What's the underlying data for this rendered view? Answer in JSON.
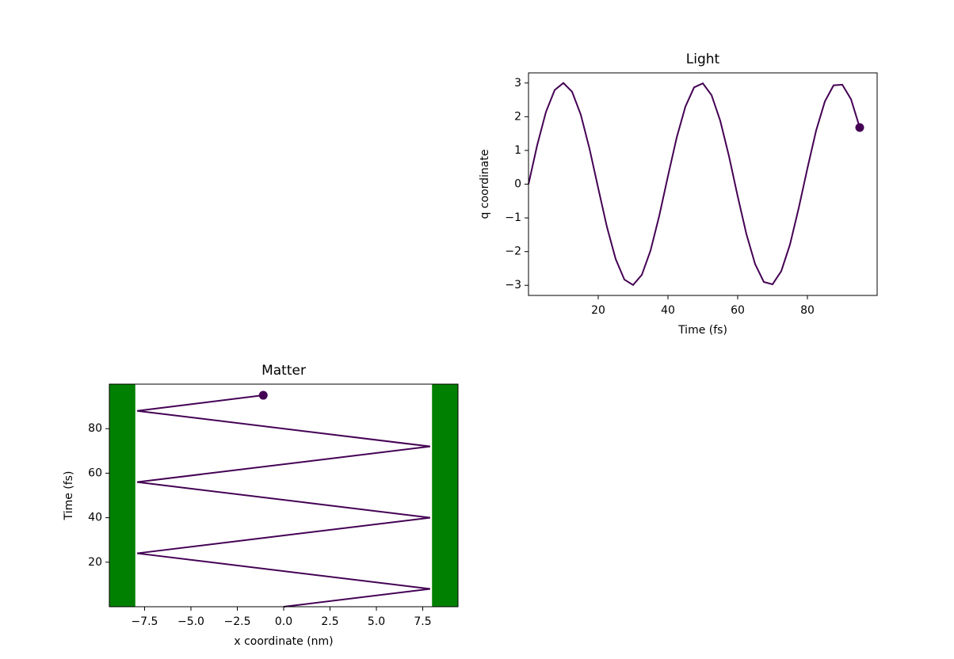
{
  "chart_data": [
    {
      "type": "line",
      "title": "Light",
      "xlabel": "Time (fs)",
      "ylabel": "q coordinate",
      "color": "#440154",
      "end_marker": true,
      "x": [
        0,
        2.5,
        5,
        7.5,
        10,
        12.5,
        15,
        17.5,
        20,
        22.5,
        25,
        27.5,
        30,
        32.5,
        35,
        37.5,
        40,
        42.5,
        45,
        47.5,
        50,
        52.5,
        55,
        57.5,
        60,
        62.5,
        65,
        67.5,
        70,
        72.5,
        75,
        77.5,
        80,
        82.5,
        85,
        87.5,
        90,
        92.5,
        95
      ],
      "values": [
        0,
        1.16,
        2.14,
        2.79,
        3.0,
        2.74,
        2.06,
        1.05,
        -0.12,
        -1.27,
        -2.22,
        -2.83,
        -2.99,
        -2.69,
        -1.97,
        -0.94,
        0.24,
        1.38,
        2.3,
        2.87,
        2.99,
        2.64,
        1.88,
        0.83,
        -0.36,
        -1.48,
        -2.37,
        -2.9,
        -2.97,
        -2.58,
        -1.79,
        -0.71,
        0.47,
        1.59,
        2.45,
        2.93,
        2.95,
        2.52,
        1.68
      ],
      "xlim": [
        0,
        100
      ],
      "ylim": [
        -3.3,
        3.3
      ],
      "xticks": [
        20,
        40,
        60,
        80
      ],
      "yticks": [
        {
          "value": -3,
          "label": "−3"
        },
        {
          "value": -2,
          "label": "−2"
        },
        {
          "value": -1,
          "label": "−1"
        },
        0,
        1,
        2,
        3
      ]
    },
    {
      "type": "line",
      "title": "Matter",
      "xlabel": "x coordinate (nm)",
      "ylabel": "Time (fs)",
      "color": "#440154",
      "end_marker": true,
      "x": [
        0,
        7.9,
        -7.9,
        7.9,
        -7.9,
        7.9,
        -7.9,
        -1.1
      ],
      "values": [
        0,
        8,
        24,
        40,
        56,
        72,
        88,
        95
      ],
      "walls": [
        -8,
        8
      ],
      "wall_color": "#008000",
      "xlim": [
        -9.4,
        9.4
      ],
      "ylim": [
        0,
        100
      ],
      "xticks": [
        {
          "value": -7.5,
          "label": "−7.5"
        },
        {
          "value": -5,
          "label": "−5.0"
        },
        {
          "value": -2.5,
          "label": "−2.5"
        },
        {
          "value": 0,
          "label": "0.0"
        },
        2.5,
        {
          "value": 5,
          "label": "5.0"
        },
        7.5
      ],
      "yticks": [
        20,
        40,
        60,
        80
      ]
    }
  ]
}
